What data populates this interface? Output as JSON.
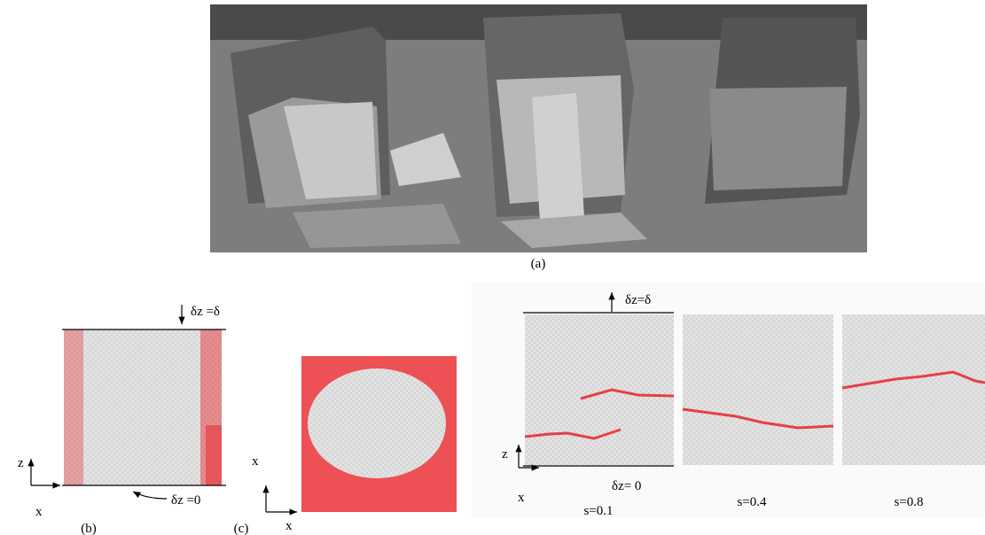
{
  "panel_a": {
    "caption": "(a)"
  },
  "panel_b": {
    "top_label": "δz =δ",
    "bottom_label": "δz =0",
    "axis_vertical": "z",
    "axis_horizontal": "x",
    "caption": "(b)"
  },
  "panel_c": {
    "axis_vertical": "x",
    "axis_horizontal": "x",
    "caption": "(c)"
  },
  "panel_d": {
    "top_label": "δz=δ",
    "bottom_label": "δz= 0",
    "axis_vertical": "z",
    "axis_horizontal": "x",
    "steps": [
      "s=0.1",
      "s=0.4",
      "s=0.8"
    ]
  }
}
